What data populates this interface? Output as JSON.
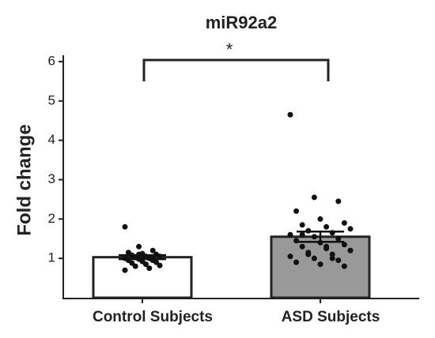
{
  "chart_data": {
    "type": "bar",
    "title": "miR92a2",
    "y_label": "Fold change",
    "categories": [
      "Control Subjects",
      "ASD Subjects"
    ],
    "values": [
      1.03,
      1.55
    ],
    "errors": [
      0.05,
      0.13
    ],
    "colors": [
      "#ffffff",
      "#999999"
    ],
    "points": [
      [
        1.8,
        1.3,
        1.2,
        1.15,
        1.12,
        1.1,
        1.08,
        1.05,
        1.05,
        1.02,
        1.0,
        1.0,
        0.98,
        0.95,
        0.95,
        0.92,
        0.9,
        0.88,
        0.85,
        0.82,
        0.8,
        0.75,
        0.7,
        1.1,
        1.03
      ],
      [
        4.65,
        2.55,
        2.45,
        2.2,
        2.0,
        1.9,
        1.85,
        1.8,
        1.75,
        1.7,
        1.65,
        1.6,
        1.55,
        1.5,
        1.45,
        1.4,
        1.35,
        1.3,
        1.25,
        1.2,
        1.15,
        1.1,
        1.05,
        1.0,
        0.95,
        0.9,
        0.85,
        0.8,
        1.6,
        1.3,
        1.2,
        1.1,
        1.0
      ]
    ],
    "annotation": "*",
    "ylim": [
      0,
      6
    ],
    "yticks": [
      1,
      2,
      3,
      4,
      5,
      6
    ]
  }
}
